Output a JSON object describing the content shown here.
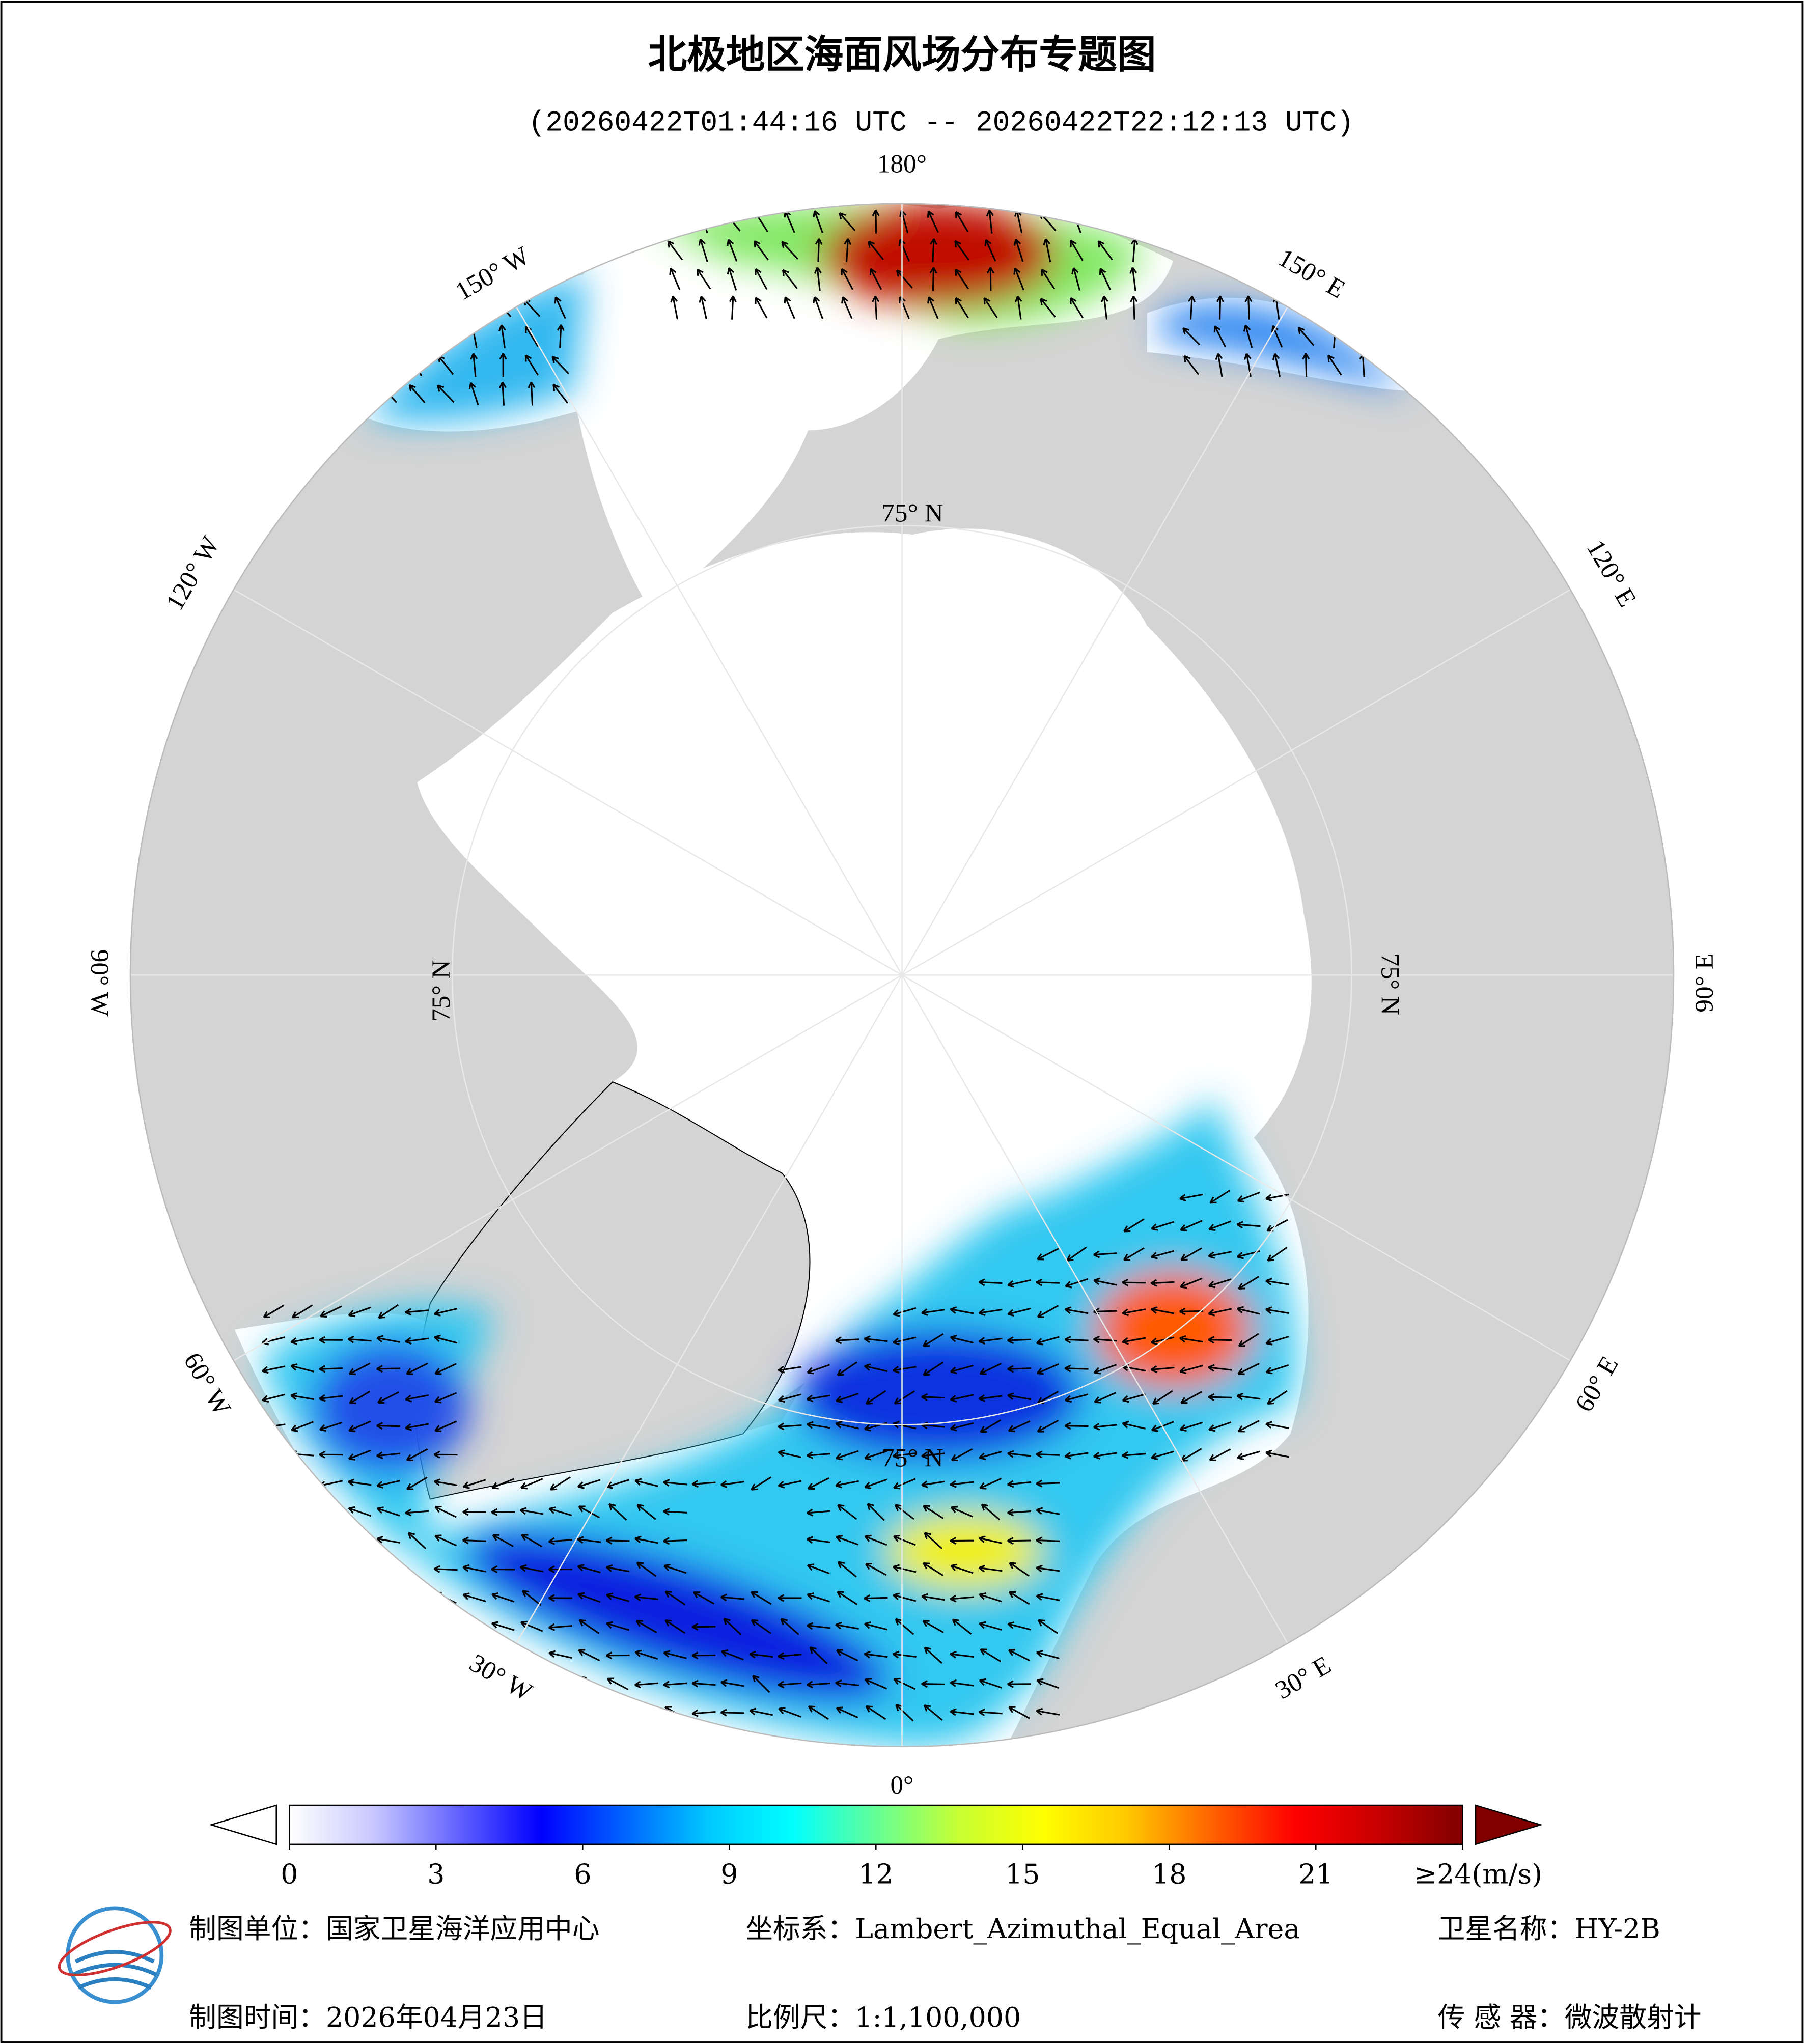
{
  "header": {
    "title": "北极地区海面风场分布专题图",
    "subtitle": "(20260422T01:44:16 UTC -- 20260422T22:12:13 UTC)"
  },
  "graticule": {
    "meridian_labels": [
      "180°",
      "150° W",
      "120° W",
      "90° W",
      "60° W",
      "30° W",
      "0°",
      "30° E",
      "60° E",
      "90° E",
      "120° E",
      "150° E"
    ],
    "parallel_label": "75° N"
  },
  "colorbar": {
    "lim": [
      0,
      24
    ],
    "ticks": [
      0,
      3,
      6,
      9,
      12,
      15,
      18,
      21,
      {
        "value": 24,
        "label": "≥24(m/s)"
      }
    ],
    "colors": [
      "#ffffff",
      "#c8c8ff",
      "#6464ff",
      "#0000ff",
      "#0064ff",
      "#00c8ff",
      "#00ffff",
      "#64ff96",
      "#c8ff32",
      "#ffff00",
      "#ffc800",
      "#ff6400",
      "#ff0000",
      "#c80000",
      "#800000"
    ]
  },
  "footer": {
    "unit": "制图单位：国家卫星海洋应用中心",
    "projection": "坐标系：Lambert_Azimuthal_Equal_Area",
    "satellite": "卫星名称：HY-2B",
    "date": "制图时间：2026年04月23日",
    "scale": "比例尺：1:1,100,000",
    "sensor": "传 感 器：微波散射计"
  }
}
